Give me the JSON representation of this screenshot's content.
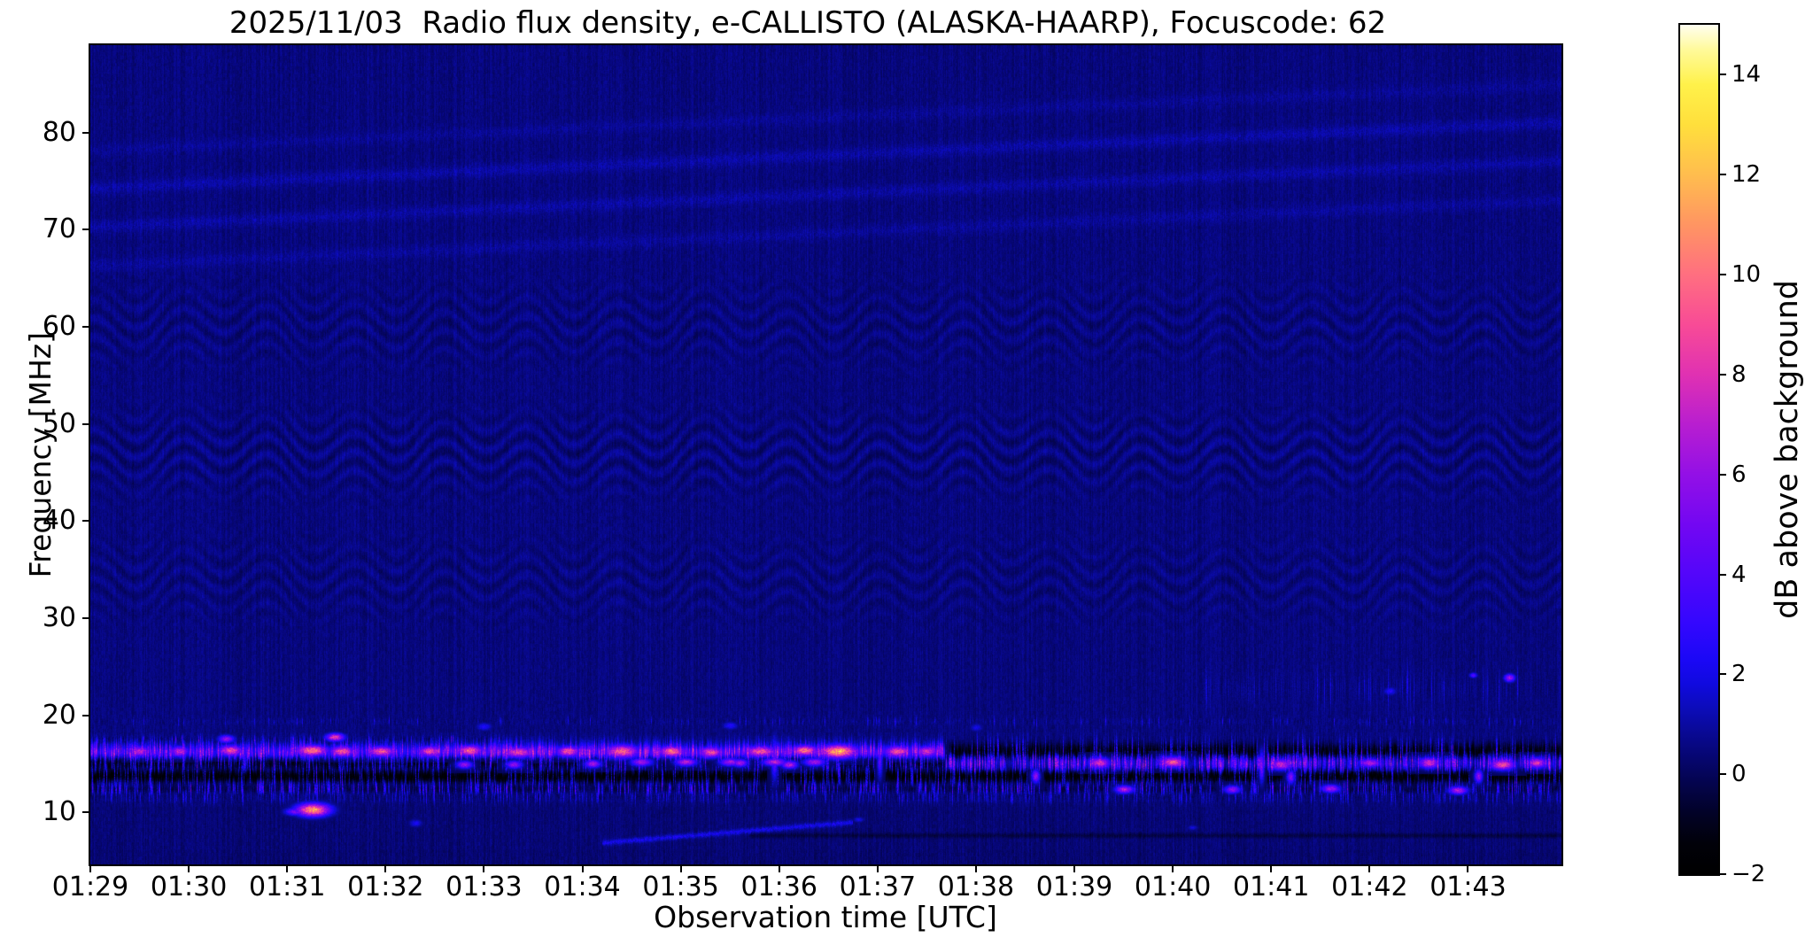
{
  "figure": {
    "title": "2025/11/03  Radio flux density, e-CALLISTO (ALASKA-HAARP), Focuscode: 62",
    "xlabel": "Observation time [UTC]",
    "ylabel": "Frequency [MHz]",
    "colorbar_label": "dB above background",
    "date": "2025/11/03",
    "instrument": "e-CALLISTO",
    "station": "ALASKA-HAARP",
    "focuscode": "62"
  },
  "chart_data": {
    "type": "heatmap",
    "title": "2025/11/03  Radio flux density, e-CALLISTO (ALASKA-HAARP), Focuscode: 62",
    "xlabel": "Observation time [UTC]",
    "ylabel": "Frequency [MHz]",
    "x_tick_labels": [
      "01:29",
      "01:30",
      "01:31",
      "01:32",
      "01:33",
      "01:34",
      "01:35",
      "01:36",
      "01:37",
      "01:38",
      "01:39",
      "01:40",
      "01:41",
      "01:42",
      "01:43"
    ],
    "y_tick_values": [
      80,
      70,
      60,
      50,
      40,
      30,
      20,
      10
    ],
    "x_axis": {
      "start_label": "01:29",
      "minutes_span": 14.95,
      "grid": false
    },
    "y_axis": {
      "min_mhz": 4.66,
      "max_mhz": 89.0,
      "grid": false
    },
    "colorbar": {
      "label": "dB above background",
      "tick_values": [
        14,
        12,
        10,
        8,
        6,
        4,
        2,
        0,
        -2
      ],
      "vmin": -2,
      "vmax": 15,
      "stops": [
        [
          -2,
          "#000000"
        ],
        [
          -1.4,
          "#010109"
        ],
        [
          -0.8,
          "#020226"
        ],
        [
          -0.2,
          "#04044c"
        ],
        [
          0.3,
          "#06066e"
        ],
        [
          0.8,
          "#090992"
        ],
        [
          1.3,
          "#0c0cb8"
        ],
        [
          1.8,
          "#100ade"
        ],
        [
          2.3,
          "#1b08f6"
        ],
        [
          3,
          "#3307fe"
        ],
        [
          4,
          "#5306fa"
        ],
        [
          5,
          "#7307f2"
        ],
        [
          6,
          "#9310e6"
        ],
        [
          7,
          "#b81ed0"
        ],
        [
          8,
          "#e031b2"
        ],
        [
          9,
          "#f84b96"
        ],
        [
          10,
          "#ff6f80"
        ],
        [
          11,
          "#ff9562"
        ],
        [
          12,
          "#ffbd4e"
        ],
        [
          13,
          "#ffdf3c"
        ],
        [
          13.8,
          "#fff14a"
        ],
        [
          14.5,
          "#fffa9a"
        ],
        [
          15,
          "#fffef0"
        ]
      ]
    },
    "features": {
      "background_db": 0.5,
      "transition_t_min": 8.69,
      "wave_region": {
        "f_top_mhz": 71,
        "f_bottom_mhz": 24,
        "amp_db": 0.42
      },
      "streaks": [
        {
          "t0": 0,
          "f0": 74.3,
          "t1": 14.95,
          "f1": 81.1,
          "amp": 0.55,
          "sigma": 5
        },
        {
          "t0": 0,
          "f0": 70.3,
          "t1": 14.95,
          "f1": 77.1,
          "amp": 0.5,
          "sigma": 5
        },
        {
          "t0": 0,
          "f0": 66.3,
          "t1": 14.95,
          "f1": 73.1,
          "amp": 0.38,
          "sigma": 5
        },
        {
          "t0": 0,
          "f0": 78.2,
          "t1": 14.95,
          "f1": 85.0,
          "amp": 0.3,
          "sigma": 5
        },
        {
          "t0": 5.2,
          "f0": 6.9,
          "t1": 7.75,
          "f1": 9.05,
          "amp": 1.6,
          "sigma": 2
        }
      ],
      "bands": [
        {
          "name": "dash-row-17.5MHz",
          "f": 17.55,
          "bw": 0.45,
          "t0": 0,
          "t1": 4.2,
          "base": 0.3,
          "density": 0.1,
          "amp": 3.0,
          "seed": 11
        },
        {
          "name": "main-band-left-bright",
          "f": 16.3,
          "bw": 1.15,
          "t0": 0,
          "t1": 8.69,
          "base": 2.6,
          "density": 0.55,
          "amp": 3.4,
          "boost_t": 3.5,
          "boost": 0.9,
          "seed": 21
        },
        {
          "name": "main-band-right-black",
          "f": 16.25,
          "bw": 1.35,
          "t0": 8.69,
          "t1": 14.95,
          "base": -1.7,
          "density": 0.2,
          "amp": 3.3,
          "seed": 31
        },
        {
          "name": "sub-band-left-dark",
          "f": 15.05,
          "bw": 1.0,
          "t0": 0,
          "t1": 8.69,
          "base": -0.9,
          "density": 0.33,
          "amp": 3.2,
          "seed": 41
        },
        {
          "name": "sub-band-right-bright",
          "f": 15.1,
          "bw": 1.15,
          "t0": 8.69,
          "t1": 14.95,
          "base": 1.3,
          "density": 0.5,
          "amp": 4.2,
          "seed": 51
        },
        {
          "name": "black-band-13.7MHz",
          "f": 13.75,
          "bw": 1.15,
          "t0": 0,
          "t1": 14.95,
          "base": -1.65,
          "density": 0.22,
          "amp": 3.0,
          "seed": 61
        },
        {
          "name": "speckle-row-12.4MHz",
          "f": 12.45,
          "bw": 0.8,
          "t0": 0,
          "t1": 14.95,
          "base": -0.25,
          "density": 0.33,
          "amp": 3.0,
          "seed": 71
        },
        {
          "name": "dim-row-11.6MHz",
          "f": 11.65,
          "bw": 0.7,
          "t0": 0,
          "t1": 14.95,
          "base": 0.35,
          "density": 0.25,
          "amp": 1.6,
          "seed": 81
        },
        {
          "name": "faint-row-19.4MHz",
          "f": 19.4,
          "bw": 0.5,
          "t0": 0,
          "t1": 14.95,
          "base": 0.55,
          "density": 0.06,
          "amp": 1.5,
          "seed": 91
        },
        {
          "name": "right-speckle-20-24MHz",
          "f": 22.8,
          "bw": 2.0,
          "t0": 11.3,
          "t1": 14.95,
          "base": 0.55,
          "density": 0.05,
          "amp": 1.4,
          "seed": 101
        }
      ],
      "dark_lines": [
        {
          "f": 7.7,
          "bw": 0.35,
          "t0": 6.7,
          "t1": 14.95,
          "depth": 0.7
        }
      ],
      "hotspots": [
        [
          0.5,
          16.35,
          7,
          7,
          4
        ],
        [
          0.9,
          16.3,
          7.5,
          7,
          4
        ],
        [
          1.42,
          16.4,
          9,
          9,
          4
        ],
        [
          2.25,
          16.45,
          10.5,
          12,
          4
        ],
        [
          2.56,
          16.3,
          9.5,
          9,
          4
        ],
        [
          2.95,
          16.3,
          9,
          11,
          4
        ],
        [
          3.45,
          16.35,
          8.5,
          9,
          4
        ],
        [
          3.85,
          16.4,
          9.5,
          10,
          4
        ],
        [
          4.35,
          16.25,
          8.5,
          12,
          4
        ],
        [
          4.85,
          16.35,
          9,
          9,
          4
        ],
        [
          5.4,
          16.3,
          9.5,
          13,
          5
        ],
        [
          5.9,
          16.35,
          10,
          10,
          4
        ],
        [
          6.3,
          16.2,
          9,
          9,
          4
        ],
        [
          6.8,
          16.35,
          9,
          13,
          4
        ],
        [
          7.25,
          16.4,
          10,
          10,
          4
        ],
        [
          7.6,
          16.3,
          12,
          14,
          5
        ],
        [
          8.2,
          16.3,
          9,
          10,
          4
        ],
        [
          8.5,
          16.3,
          8,
          8,
          4
        ],
        [
          5.6,
          15.2,
          6.5,
          8,
          3
        ],
        [
          6.05,
          15.25,
          7,
          8,
          3
        ],
        [
          6.5,
          15.2,
          6.5,
          8,
          3
        ],
        [
          6.95,
          15.25,
          7,
          9,
          3
        ],
        [
          7.35,
          15.2,
          6.5,
          8,
          3
        ],
        [
          3.8,
          15.0,
          6,
          6,
          3
        ],
        [
          5.1,
          15.05,
          6.5,
          6,
          3
        ],
        [
          4.3,
          15.0,
          6,
          6,
          3
        ],
        [
          6.6,
          15.1,
          6.5,
          6,
          3
        ],
        [
          7.1,
          15.0,
          7,
          6,
          3
        ],
        [
          2.26,
          10.3,
          11,
          13,
          5
        ],
        [
          2.08,
          10.1,
          5,
          8,
          3
        ],
        [
          10.25,
          15.1,
          8,
          8,
          4
        ],
        [
          11.0,
          15.2,
          9,
          9,
          4
        ],
        [
          12.1,
          15.0,
          7.5,
          8,
          4
        ],
        [
          13.0,
          15.15,
          7,
          8,
          3
        ],
        [
          13.6,
          15.1,
          8,
          8,
          4
        ],
        [
          14.35,
          15.0,
          9,
          9,
          4
        ],
        [
          14.7,
          15.15,
          8,
          7,
          4
        ],
        [
          10.5,
          12.4,
          7,
          7,
          3
        ],
        [
          11.6,
          12.45,
          6,
          6,
          3
        ],
        [
          12.6,
          12.5,
          6.5,
          7,
          3
        ],
        [
          13.9,
          12.3,
          7,
          7,
          3
        ],
        [
          1.38,
          17.6,
          6,
          6,
          3
        ],
        [
          2.48,
          17.75,
          8.5,
          7,
          3
        ],
        [
          14.42,
          23.9,
          6.5,
          4,
          3
        ],
        [
          14.05,
          24.15,
          4,
          3,
          2
        ],
        [
          13.2,
          22.5,
          2.5,
          5,
          3
        ],
        [
          4.0,
          18.9,
          2.5,
          6,
          3
        ],
        [
          6.5,
          19.0,
          2.5,
          6,
          3
        ],
        [
          9.0,
          18.8,
          2,
          5,
          3
        ],
        [
          6.95,
          15.6,
          4.5,
          2.5,
          16
        ],
        [
          8.02,
          15.5,
          4,
          2,
          14
        ],
        [
          11.9,
          14.8,
          5,
          2,
          12
        ],
        [
          9.6,
          13.8,
          6,
          3,
          5
        ],
        [
          12.2,
          13.7,
          5.5,
          3,
          5
        ],
        [
          14.1,
          13.8,
          6,
          3,
          5
        ],
        [
          3.3,
          8.9,
          2.2,
          5,
          3
        ],
        [
          7.8,
          9.3,
          2.0,
          4,
          2
        ],
        [
          11.2,
          8.5,
          1.8,
          4,
          2
        ]
      ]
    }
  }
}
